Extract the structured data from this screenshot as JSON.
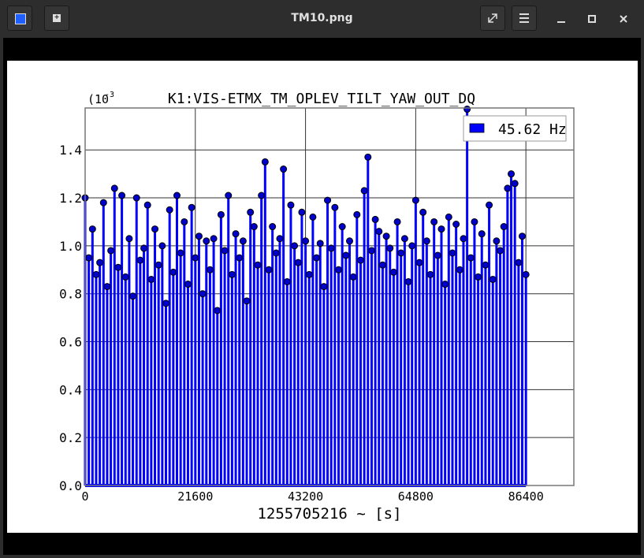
{
  "window": {
    "title": "TM10.png"
  },
  "chart_data": {
    "type": "stem",
    "title": "K1:VIS-ETMX_TM_OPLEV_TILT_YAW_OUT_DQ",
    "y_multiplier": "(10",
    "y_multiplier_exp": "-3",
    "xlabel": "1255705216 ~ [s]",
    "x": [
      0,
      720,
      1440,
      2160,
      2880,
      3600,
      4320,
      5040,
      5760,
      6480,
      7200,
      7920,
      8640,
      9360,
      10080,
      10800,
      11520,
      12240,
      12960,
      13680,
      14400,
      15120,
      15840,
      16560,
      17280,
      18000,
      18720,
      19440,
      20160,
      20880,
      21600,
      22320,
      23040,
      23760,
      24480,
      25200,
      25920,
      26640,
      27360,
      28080,
      28800,
      29520,
      30240,
      30960,
      31680,
      32400,
      33120,
      33840,
      34560,
      35280,
      36000,
      36720,
      37440,
      38160,
      38880,
      39600,
      40320,
      41040,
      41760,
      42480,
      43200,
      43920,
      44640,
      45360,
      46080,
      46800,
      47520,
      48240,
      48960,
      49680,
      50400,
      51120,
      51840,
      52560,
      53280,
      54000,
      54720,
      55440,
      56160,
      56880,
      57600,
      58320,
      59040,
      59760,
      60480,
      61200,
      61920,
      62640,
      63360,
      64080,
      64800,
      65520,
      66240,
      66960,
      67680,
      68400,
      69120,
      69840,
      70560,
      71280,
      72000,
      72720,
      73440,
      74160,
      74880,
      75600,
      76320,
      77040,
      77760,
      78480,
      79200,
      79920,
      80640,
      81360,
      82080,
      82800,
      83520,
      84240,
      84960,
      85680,
      86400
    ],
    "series": [
      {
        "name": "45.62 Hz",
        "color": "#0000ff",
        "values": [
          1.2,
          0.95,
          1.07,
          0.88,
          0.93,
          1.18,
          0.83,
          0.98,
          1.24,
          0.91,
          1.21,
          0.87,
          1.03,
          0.79,
          1.2,
          0.94,
          0.99,
          1.17,
          0.86,
          1.07,
          0.92,
          1.0,
          0.76,
          1.15,
          0.89,
          1.21,
          0.97,
          1.1,
          0.84,
          1.16,
          0.95,
          1.04,
          0.8,
          1.02,
          0.9,
          1.03,
          0.73,
          1.13,
          0.98,
          1.21,
          0.88,
          1.05,
          0.95,
          1.02,
          0.77,
          1.14,
          1.08,
          0.92,
          1.21,
          1.35,
          0.9,
          1.08,
          0.97,
          1.03,
          1.32,
          0.85,
          1.17,
          1.0,
          0.93,
          1.14,
          1.02,
          0.88,
          1.12,
          0.95,
          1.01,
          0.83,
          1.19,
          0.99,
          1.16,
          0.9,
          1.08,
          0.96,
          1.02,
          0.87,
          1.13,
          0.94,
          1.23,
          1.37,
          0.98,
          1.11,
          1.06,
          0.92,
          1.04,
          0.99,
          0.89,
          1.1,
          0.97,
          1.03,
          0.85,
          1.0,
          1.19,
          0.93,
          1.14,
          1.02,
          0.88,
          1.1,
          0.96,
          1.07,
          0.84,
          1.12,
          0.97,
          1.09,
          0.9,
          1.03,
          1.57,
          0.95,
          1.1,
          0.87,
          1.05,
          0.92,
          1.17,
          0.86,
          1.02,
          0.98,
          1.08,
          1.24,
          1.3,
          1.26,
          0.93,
          1.04,
          0.88
        ]
      }
    ],
    "xlim": [
      0,
      95800
    ],
    "xticks": [
      0,
      21600,
      43200,
      64800,
      86400
    ],
    "ylim": [
      0,
      1.575
    ],
    "yticks": [
      {
        "value": 0,
        "label": "0.0"
      },
      0.2,
      0.4,
      0.6,
      0.8,
      {
        "value": 1,
        "label": "1.0"
      },
      1.2,
      1.4
    ],
    "grid": true,
    "legend": "upper right"
  }
}
